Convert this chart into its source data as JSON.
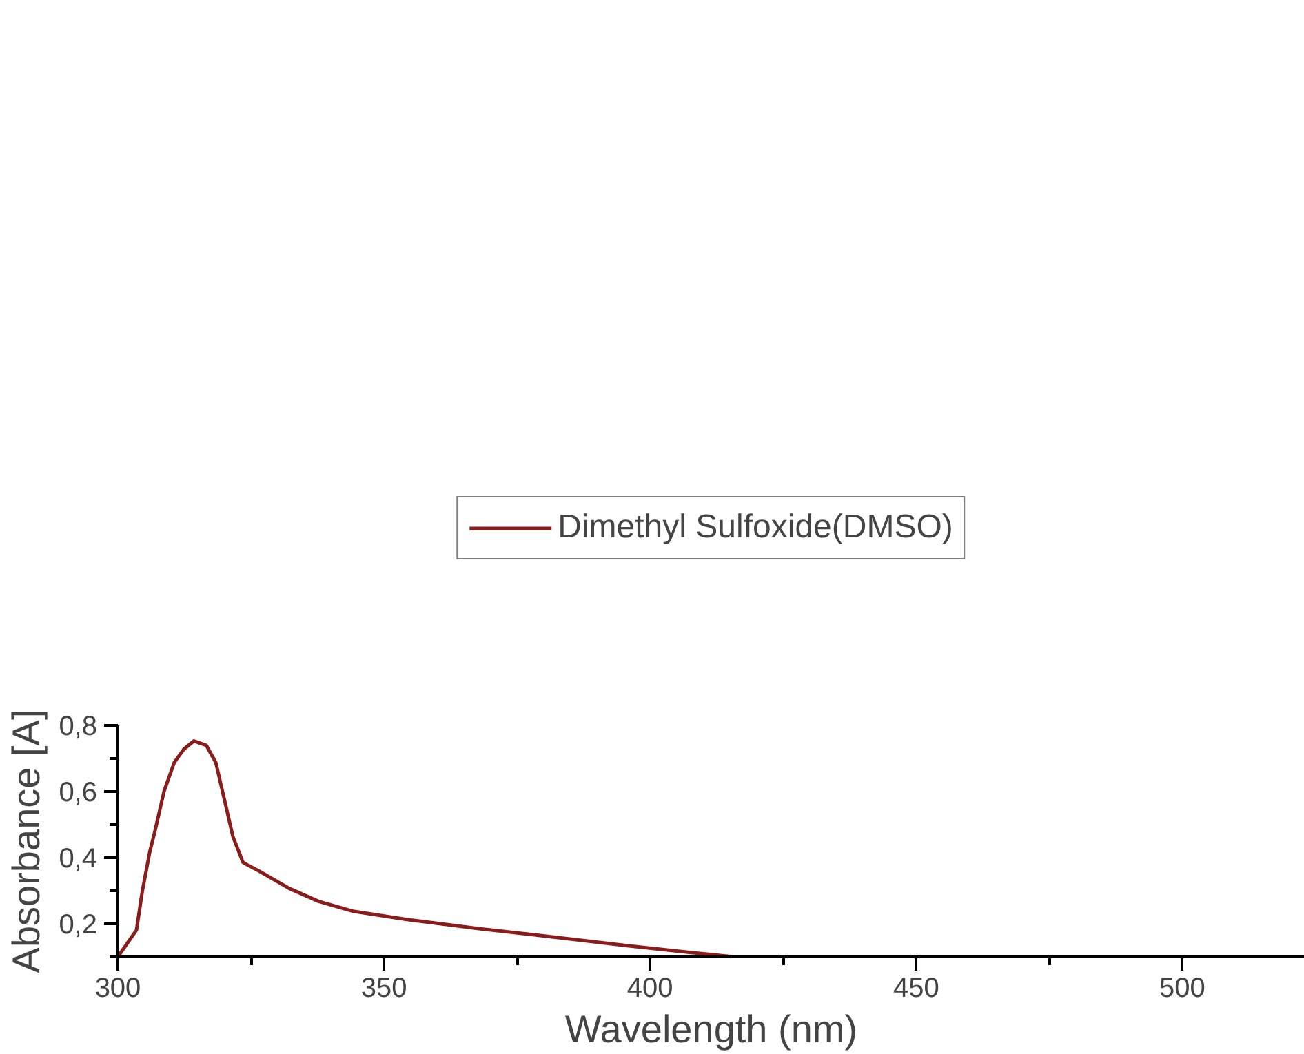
{
  "chart_data": {
    "type": "line",
    "xlabel": "Wavelength (nm)",
    "ylabel": "Absorbance [A]",
    "x": [
      300,
      303.5,
      304.6,
      306,
      306.9,
      308.7,
      310.6,
      312.4,
      314.3,
      316.6,
      318.4,
      320.2,
      321.6,
      323.5,
      323.9,
      326.7,
      332.2,
      337.7,
      344.2,
      354.3,
      368.1,
      381.9,
      395.7,
      407.7,
      415.1
    ],
    "series": [
      {
        "name": "Dimethyl Sulfoxide(DMSO)",
        "color": "#8b1c1c",
        "values": [
          0.1,
          0.181,
          0.299,
          0.418,
          0.476,
          0.602,
          0.688,
          0.728,
          0.753,
          0.74,
          0.688,
          0.563,
          0.465,
          0.386,
          0.382,
          0.358,
          0.307,
          0.268,
          0.238,
          0.213,
          0.185,
          0.16,
          0.134,
          0.113,
          0.101
        ]
      }
    ],
    "xlim": [
      300,
      523
    ],
    "xticks": [
      300,
      350,
      400,
      450,
      500
    ],
    "ylim": [
      0.1,
      0.8
    ],
    "yticks": [
      {
        "value": 0.2,
        "label": "0,2"
      },
      {
        "value": 0.4,
        "label": "0,4"
      },
      {
        "value": 0.6,
        "label": "0,6"
      },
      {
        "value": 0.8,
        "label": "0,8"
      }
    ],
    "grid": false,
    "legend": "top",
    "marker": "none",
    "line_style": "solid"
  }
}
